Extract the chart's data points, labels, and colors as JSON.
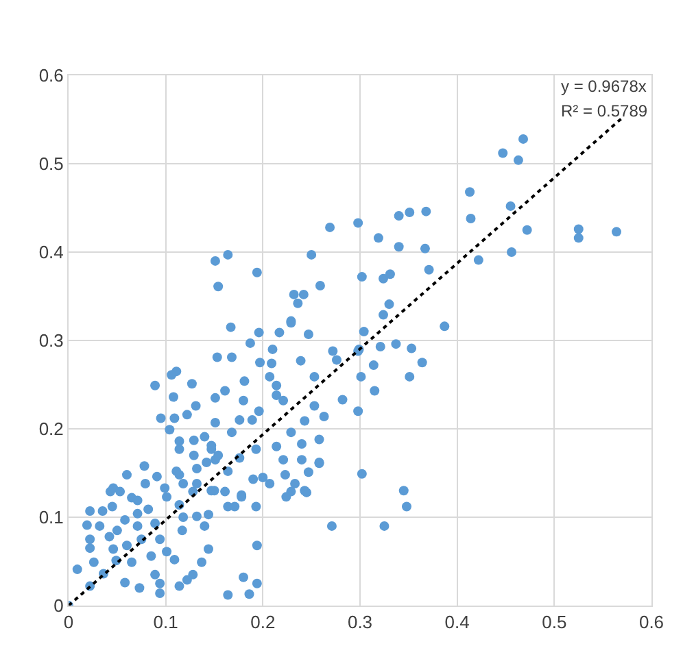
{
  "chart_data": {
    "type": "scatter",
    "annotations": [
      "y = 0.9678x",
      "R² = 0.5789"
    ],
    "xlim": [
      0,
      0.6
    ],
    "xticks": [
      0,
      0.1,
      0.2,
      0.3,
      0.4,
      0.5,
      0.6
    ],
    "ylim": [
      0,
      0.6
    ],
    "yticks": [
      0,
      0.1,
      0.2,
      0.3,
      0.4,
      0.5,
      0.6
    ],
    "grid": true,
    "marker": "circle",
    "series": [
      {
        "color": "#5b9bd5",
        "x": [
          0.468,
          0.447,
          0.463,
          0.413,
          0.455,
          0.414,
          0.298,
          0.34,
          0.351,
          0.368,
          0.319,
          0.34,
          0.367,
          0.472,
          0.525,
          0.525,
          0.564,
          0.422,
          0.456,
          0.371,
          0.302,
          0.324,
          0.331,
          0.33,
          0.151,
          0.164,
          0.194,
          0.154,
          0.25,
          0.269,
          0.259,
          0.232,
          0.242,
          0.236,
          0.229,
          0.167,
          0.111,
          0.127,
          0.108,
          0.153,
          0.168,
          0.181,
          0.196,
          0.187,
          0.217,
          0.229,
          0.247,
          0.21,
          0.197,
          0.209,
          0.239,
          0.272,
          0.299,
          0.314,
          0.321,
          0.337,
          0.353,
          0.351,
          0.315,
          0.301,
          0.282,
          0.298,
          0.253,
          0.253,
          0.263,
          0.243,
          0.207,
          0.214,
          0.214,
          0.221,
          0.196,
          0.18,
          0.151,
          0.161,
          0.122,
          0.151,
          0.176,
          0.189,
          0.109,
          0.114,
          0.14,
          0.168,
          0.229,
          0.258,
          0.214,
          0.193,
          0.24,
          0.147,
          0.129,
          0.151,
          0.176,
          0.221,
          0.24,
          0.258,
          0.111,
          0.132,
          0.164,
          0.2,
          0.223,
          0.247,
          0.19,
          0.207,
          0.233,
          0.243,
          0.15,
          0.118,
          0.178,
          0.302,
          0.345,
          0.229,
          0.131,
          0.324,
          0.387,
          0.304,
          0.364,
          0.258,
          0.298,
          0.276,
          0.348,
          0.271,
          0.325,
          0.224,
          0.245,
          0,
          0.009,
          0.022,
          0.026,
          0.022,
          0.036,
          0.049,
          0.058,
          0.073,
          0.089,
          0.094,
          0.094,
          0.114,
          0.128,
          0.137,
          0.144,
          0.117,
          0.101,
          0.109,
          0.085,
          0.065,
          0.046,
          0.022,
          0.019,
          0.022,
          0.035,
          0.032,
          0.045,
          0.043,
          0.046,
          0.053,
          0.06,
          0.065,
          0.071,
          0.079,
          0.091,
          0.099,
          0.101,
          0.042,
          0.05,
          0.058,
          0.071,
          0.082,
          0.089,
          0.094,
          0.075,
          0.06,
          0.14,
          0.144,
          0.118,
          0.132,
          0.114,
          0.128,
          0.114,
          0.132,
          0.147,
          0.161,
          0.164,
          0.171,
          0.193,
          0.178,
          0.194,
          0.18,
          0.194,
          0.186,
          0.164,
          0.122,
          0.114,
          0.129,
          0.147,
          0.154,
          0.142,
          0.104,
          0.078,
          0.071,
          0.089,
          0.095,
          0.106
        ],
        "values": [
          0.528,
          0.512,
          0.504,
          0.468,
          0.452,
          0.438,
          0.433,
          0.441,
          0.445,
          0.446,
          0.416,
          0.406,
          0.404,
          0.425,
          0.426,
          0.416,
          0.423,
          0.391,
          0.4,
          0.38,
          0.372,
          0.37,
          0.375,
          0.341,
          0.39,
          0.397,
          0.377,
          0.361,
          0.397,
          0.428,
          0.362,
          0.352,
          0.352,
          0.342,
          0.322,
          0.315,
          0.265,
          0.251,
          0.236,
          0.281,
          0.281,
          0.254,
          0.309,
          0.297,
          0.309,
          0.32,
          0.307,
          0.29,
          0.275,
          0.274,
          0.277,
          0.288,
          0.29,
          0.272,
          0.293,
          0.296,
          0.291,
          0.259,
          0.243,
          0.259,
          0.233,
          0.22,
          0.259,
          0.226,
          0.214,
          0.209,
          0.259,
          0.249,
          0.238,
          0.232,
          0.22,
          0.232,
          0.235,
          0.243,
          0.216,
          0.207,
          0.21,
          0.21,
          0.212,
          0.186,
          0.191,
          0.196,
          0.196,
          0.188,
          0.18,
          0.177,
          0.183,
          0.177,
          0.17,
          0.165,
          0.167,
          0.165,
          0.165,
          0.162,
          0.152,
          0.155,
          0.152,
          0.145,
          0.148,
          0.151,
          0.143,
          0.138,
          0.138,
          0.13,
          0.13,
          0.138,
          0.125,
          0.149,
          0.13,
          0.129,
          0.226,
          0.329,
          0.316,
          0.31,
          0.275,
          0.161,
          0.288,
          0.278,
          0.112,
          0.09,
          0.09,
          0.123,
          0.128,
          0,
          0.041,
          0.065,
          0.049,
          0.022,
          0.036,
          0.051,
          0.026,
          0.02,
          0.035,
          0.014,
          0.025,
          0.022,
          0.035,
          0.049,
          0.064,
          0.085,
          0.061,
          0.052,
          0.056,
          0.049,
          0.064,
          0.075,
          0.091,
          0.107,
          0.107,
          0.09,
          0.112,
          0.129,
          0.133,
          0.129,
          0.148,
          0.122,
          0.104,
          0.138,
          0.146,
          0.133,
          0.123,
          0.078,
          0.085,
          0.097,
          0.09,
          0.109,
          0.093,
          0.075,
          0.075,
          0.068,
          0.09,
          0.103,
          0.1,
          0.101,
          0.114,
          0.129,
          0.148,
          0.138,
          0.13,
          0.129,
          0.112,
          0.112,
          0.112,
          0.123,
          0.068,
          0.032,
          0.025,
          0.013,
          0.012,
          0.029,
          0.177,
          0.187,
          0.181,
          0.17,
          0.162,
          0.199,
          0.158,
          0.119,
          0.249,
          0.212,
          0.261
        ]
      },
      {
        "type": "line",
        "color": "#000000",
        "line_style": "dotted",
        "marker": "none",
        "x": [
          0,
          0.57
        ],
        "values": [
          0,
          0.552
        ]
      }
    ]
  }
}
